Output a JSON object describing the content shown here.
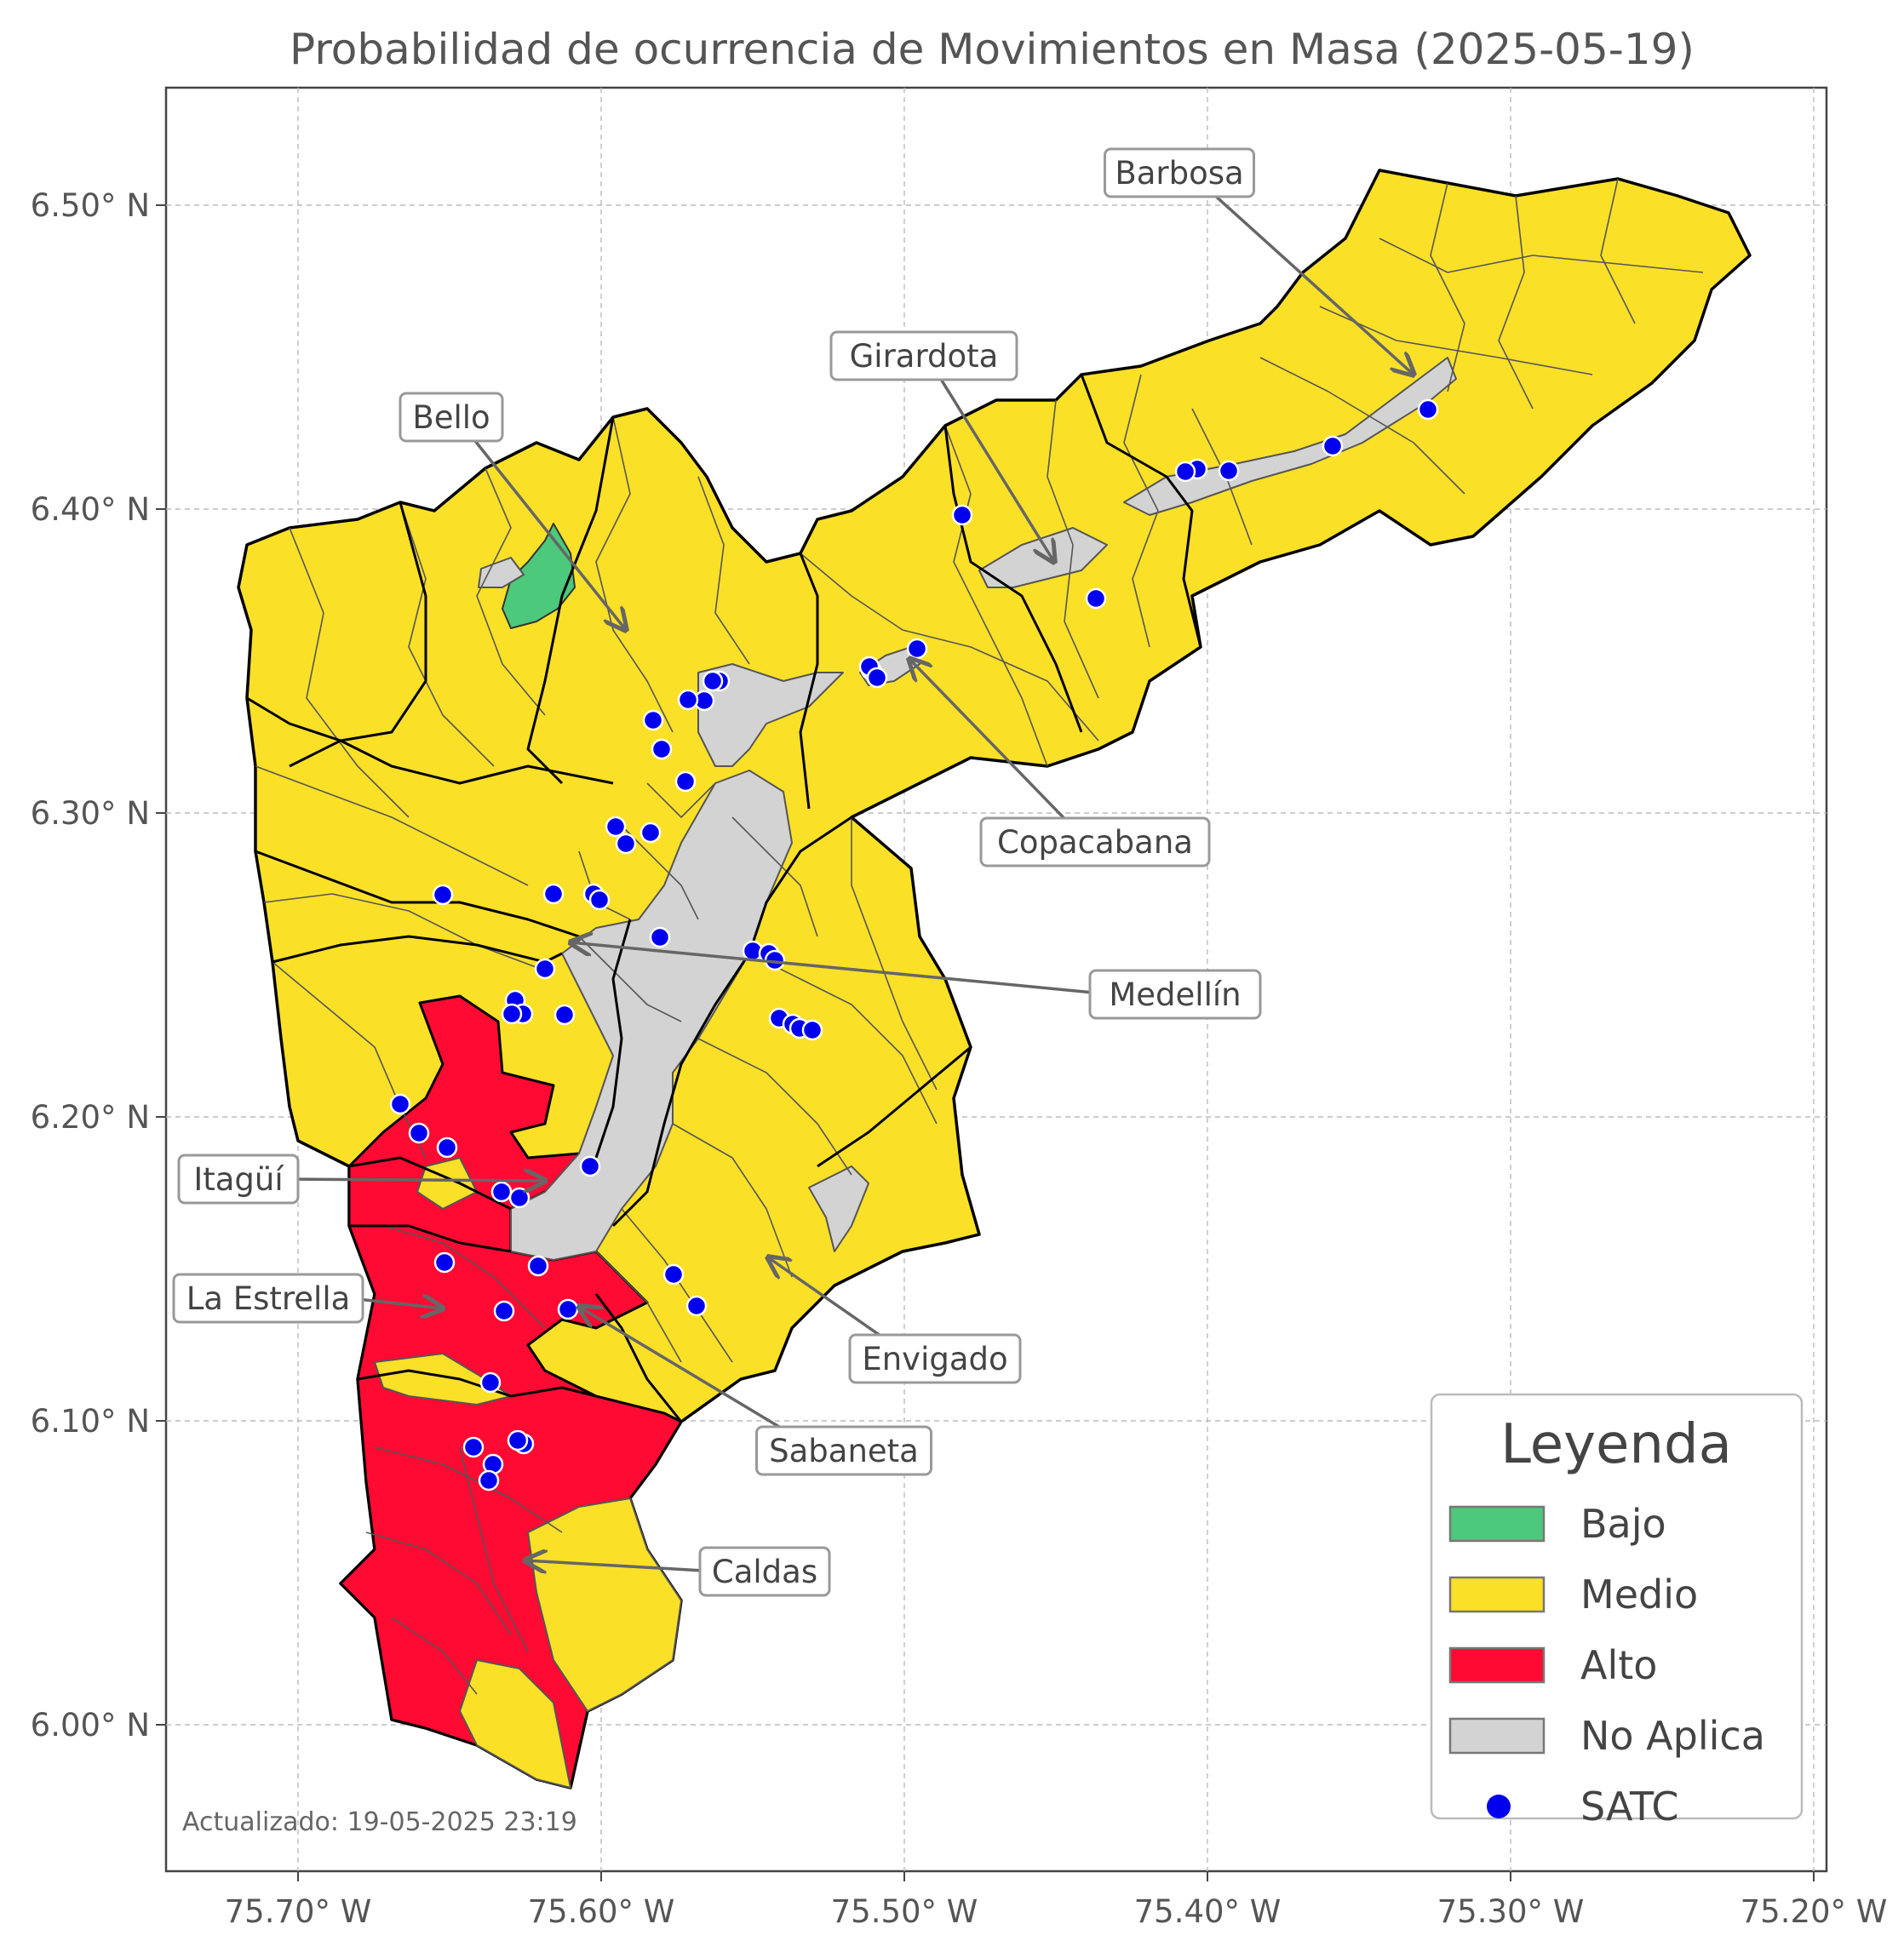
{
  "title": "Probabilidad de ocurrencia de Movimientos en Masa (2025-05-19)",
  "axes": {
    "x_ticks": [
      {
        "value": -75.7,
        "label": "75.70° W"
      },
      {
        "value": -75.6,
        "label": "75.60° W"
      },
      {
        "value": -75.5,
        "label": "75.50° W"
      },
      {
        "value": -75.4,
        "label": "75.40° W"
      },
      {
        "value": -75.3,
        "label": "75.30° W"
      },
      {
        "value": -75.2,
        "label": "75.20° W"
      }
    ],
    "y_ticks": [
      {
        "value": 6.0,
        "label": "6.00° N"
      },
      {
        "value": 6.1,
        "label": "6.10° N"
      },
      {
        "value": 6.2,
        "label": "6.20° N"
      },
      {
        "value": 6.3,
        "label": "6.30° N"
      },
      {
        "value": 6.4,
        "label": "6.40° N"
      },
      {
        "value": 6.5,
        "label": "6.50° N"
      }
    ],
    "grid": true
  },
  "colors": {
    "bajo": "#4cc97a",
    "medio": "#fbe028",
    "alto": "#ff0a33",
    "no_aplica": "#d3d3d3",
    "satc": "#0000ee",
    "border": "#000000",
    "subdivision": "#555555"
  },
  "municipalities": [
    {
      "name": "Barbosa",
      "label": "Barbosa"
    },
    {
      "name": "Girardota",
      "label": "Girardota"
    },
    {
      "name": "Bello",
      "label": "Bello"
    },
    {
      "name": "Copacabana",
      "label": "Copacabana"
    },
    {
      "name": "Medellín",
      "label": "Medellín"
    },
    {
      "name": "Itagüí",
      "label": "Itagüí"
    },
    {
      "name": "La Estrella",
      "label": "La Estrella"
    },
    {
      "name": "Envigado",
      "label": "Envigado"
    },
    {
      "name": "Sabaneta",
      "label": "Sabaneta"
    },
    {
      "name": "Caldas",
      "label": "Caldas"
    }
  ],
  "legend": {
    "title": "Leyenda",
    "items": [
      {
        "key": "bajo",
        "label": "Bajo",
        "color": "#4cc97a"
      },
      {
        "key": "medio",
        "label": "Medio",
        "color": "#fbe028"
      },
      {
        "key": "alto",
        "label": "Alto",
        "color": "#ff0a33"
      },
      {
        "key": "no_aplica",
        "label": "No Aplica",
        "color": "#d3d3d3"
      },
      {
        "key": "satc",
        "label": "SATC",
        "color": "#0000ee"
      }
    ]
  },
  "footer": "Actualizado: 19-05-2025 23:19"
}
